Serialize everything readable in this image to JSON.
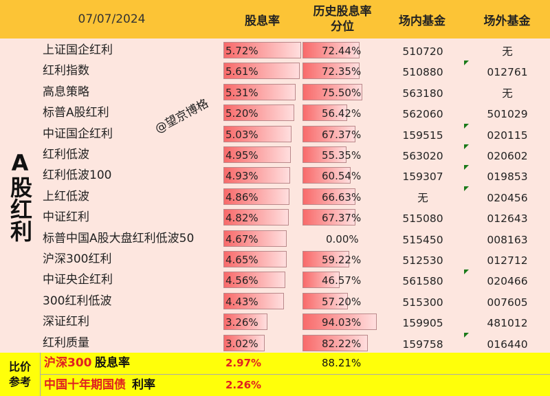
{
  "header": {
    "date": "07/07/2024",
    "yield_label": "股息率",
    "hist_label_line1": "历史股息率",
    "hist_label_line2": "分位",
    "onmarket_label": "场内基金",
    "offmarket_label": "场外基金"
  },
  "side_label": "A股红利",
  "watermark": "@望京博格",
  "rows": [
    {
      "name": "上证国企红利",
      "yield": "5.72%",
      "yield_value": 5.72,
      "percentile": "72.44%",
      "percentile_value": 72.44,
      "onmarket": "510720",
      "offmarket": "无"
    },
    {
      "name": "红利指数",
      "yield": "5.61%",
      "yield_value": 5.61,
      "percentile": "72.35%",
      "percentile_value": 72.35,
      "onmarket": "510880",
      "offmarket": "012761"
    },
    {
      "name": "高息策略",
      "yield": "5.31%",
      "yield_value": 5.31,
      "percentile": "75.50%",
      "percentile_value": 75.5,
      "onmarket": "563180",
      "offmarket": "无"
    },
    {
      "name": "标普A股红利",
      "yield": "5.20%",
      "yield_value": 5.2,
      "percentile": "56.42%",
      "percentile_value": 56.42,
      "onmarket": "562060",
      "offmarket": "501029"
    },
    {
      "name": "中证国企红利",
      "yield": "5.03%",
      "yield_value": 5.03,
      "percentile": "67.37%",
      "percentile_value": 67.37,
      "onmarket": "159515",
      "offmarket": "020115"
    },
    {
      "name": "红利低波",
      "yield": "4.95%",
      "yield_value": 4.95,
      "percentile": "55.35%",
      "percentile_value": 55.35,
      "onmarket": "563020",
      "offmarket": "020602"
    },
    {
      "name": "红利低波100",
      "yield": "4.93%",
      "yield_value": 4.93,
      "percentile": "60.54%",
      "percentile_value": 60.54,
      "onmarket": "159307",
      "offmarket": "019853"
    },
    {
      "name": "上红低波",
      "yield": "4.86%",
      "yield_value": 4.86,
      "percentile": "66.63%",
      "percentile_value": 66.63,
      "onmarket": "无",
      "offmarket": "020456"
    },
    {
      "name": "中证红利",
      "yield": "4.82%",
      "yield_value": 4.82,
      "percentile": "67.37%",
      "percentile_value": 67.37,
      "onmarket": "515080",
      "offmarket": "012643"
    },
    {
      "name": "标普中国A股大盘红利低波50",
      "yield": "4.67%",
      "yield_value": 4.67,
      "percentile": "0.00%",
      "percentile_value": 0.0,
      "onmarket": "515450",
      "offmarket": "008163"
    },
    {
      "name": "沪深300红利",
      "yield": "4.65%",
      "yield_value": 4.65,
      "percentile": "59.22%",
      "percentile_value": 59.22,
      "onmarket": "512530",
      "offmarket": "012712"
    },
    {
      "name": "中证央企红利",
      "yield": "4.56%",
      "yield_value": 4.56,
      "percentile": "46.57%",
      "percentile_value": 46.57,
      "onmarket": "561580",
      "offmarket": "020466"
    },
    {
      "name": "300红利低波",
      "yield": "4.43%",
      "yield_value": 4.43,
      "percentile": "57.20%",
      "percentile_value": 57.2,
      "onmarket": "515300",
      "offmarket": "007605"
    },
    {
      "name": "深证红利",
      "yield": "3.26%",
      "yield_value": 3.26,
      "percentile": "94.03%",
      "percentile_value": 94.03,
      "onmarket": "159905",
      "offmarket": "481012"
    },
    {
      "name": "红利质量",
      "yield": "3.02%",
      "yield_value": 3.02,
      "percentile": "82.22%",
      "percentile_value": 82.22,
      "onmarket": "159758",
      "offmarket": "016440"
    }
  ],
  "footer": {
    "side_line1": "比价",
    "side_line2": "参考",
    "row1_name": "沪深300",
    "row1_suffix": "股息率",
    "row1_yield": "2.97%",
    "row1_percentile": "88.21%",
    "row2_name": "中国十年期国债",
    "row2_suffix": "利率",
    "row2_yield": "2.26%"
  },
  "colors": {
    "header_bg": "#fcc436",
    "body_bg": "#fde6df",
    "bar_start": "#f86a6a",
    "footer_bg": "#ffff0a",
    "footer_red": "#e02020",
    "marker_green": "#1a7a1a"
  }
}
